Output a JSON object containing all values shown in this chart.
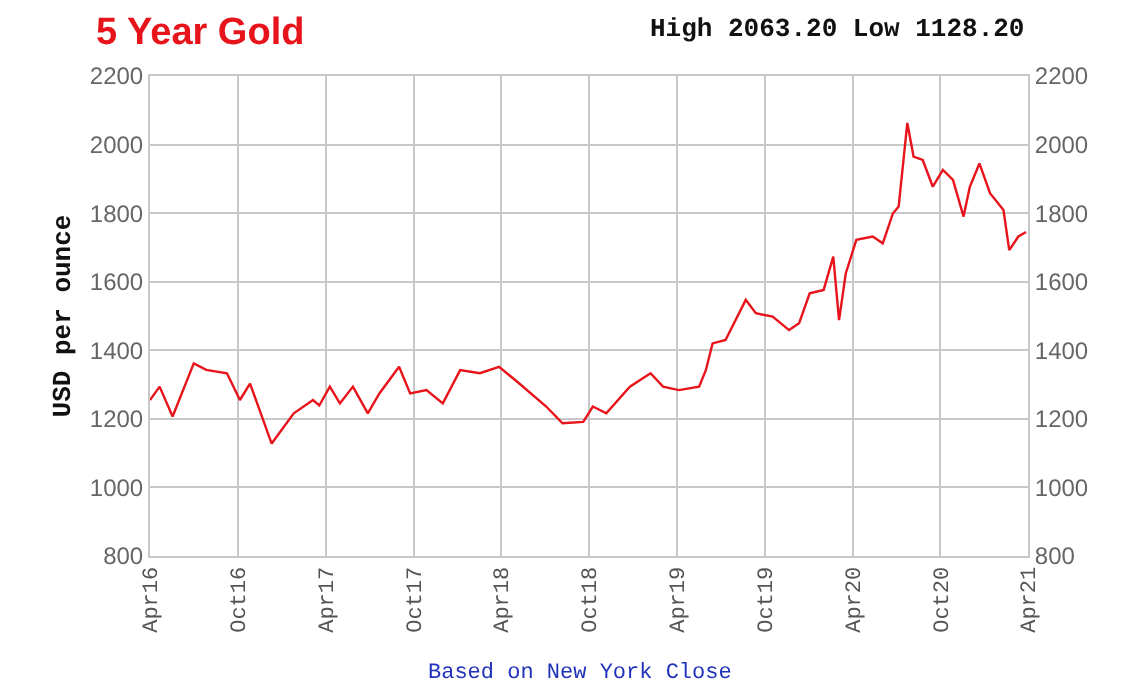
{
  "chart_data": {
    "type": "line",
    "title": "5 Year Gold",
    "subtitle": "High 2063.20 Low 1128.20",
    "ylabel": "USD per ounce",
    "annotations": [
      "Based on New York Close"
    ],
    "x": [
      "2016-04-01",
      "2016-04-21",
      "2016-05-18",
      "2016-07-01",
      "2016-07-27",
      "2016-09-08",
      "2016-10-05",
      "2016-10-26",
      "2016-12-10",
      "2017-01-25",
      "2017-03-06",
      "2017-03-19",
      "2017-04-10",
      "2017-05-01",
      "2017-05-28",
      "2017-06-28",
      "2017-07-22",
      "2017-09-01",
      "2017-09-24",
      "2017-10-28",
      "2017-12-01",
      "2018-01-06",
      "2018-02-16",
      "2018-03-28",
      "2018-05-09",
      "2018-07-04",
      "2018-08-07",
      "2018-09-19",
      "2018-10-09",
      "2018-11-06",
      "2018-12-25",
      "2019-02-06",
      "2019-03-04",
      "2019-04-06",
      "2019-05-18",
      "2019-06-01",
      "2019-06-15",
      "2019-07-12",
      "2019-08-23",
      "2019-09-13",
      "2019-10-18",
      "2019-11-21",
      "2019-12-12",
      "2020-01-03",
      "2020-02-01",
      "2020-02-21",
      "2020-03-04",
      "2020-03-18",
      "2020-04-09",
      "2020-05-13",
      "2020-06-03",
      "2020-06-24",
      "2020-07-06",
      "2020-07-24",
      "2020-08-06",
      "2020-08-25",
      "2020-09-15",
      "2020-10-06",
      "2020-10-27",
      "2020-11-18",
      "2020-12-01",
      "2020-12-21",
      "2021-01-12",
      "2021-02-09",
      "2021-02-21",
      "2021-03-12",
      "2021-03-28"
    ],
    "series": [
      {
        "color": "#e8141c",
        "values": [
          1255,
          1294,
          1207,
          1362,
          1343,
          1333,
          1255,
          1303,
          1128,
          1216,
          1255,
          1239,
          1294,
          1245,
          1294,
          1216,
          1274,
          1352,
          1274,
          1284,
          1245,
          1342,
          1333,
          1352,
          1303,
          1236,
          1187,
          1191,
          1236,
          1216,
          1294,
          1333,
          1294,
          1284,
          1294,
          1342,
          1420,
          1430,
          1547,
          1508,
          1498,
          1459,
          1479,
          1566,
          1576,
          1673,
          1488,
          1624,
          1722,
          1732,
          1712,
          1799,
          1819,
          2063,
          1965,
          1955,
          1877,
          1926,
          1897,
          1790,
          1877,
          1945,
          1858,
          1809,
          1692,
          1732,
          1745
        ]
      }
    ],
    "xlim": [
      "2016-04-01",
      "2021-04-01"
    ],
    "xticks": [
      {
        "value": "2016-04-01",
        "label": "Apr16"
      },
      {
        "value": "2016-10-01",
        "label": "Oct16"
      },
      {
        "value": "2017-04-01",
        "label": "Apr17"
      },
      {
        "value": "2017-10-01",
        "label": "Oct17"
      },
      {
        "value": "2018-04-01",
        "label": "Apr18"
      },
      {
        "value": "2018-10-01",
        "label": "Oct18"
      },
      {
        "value": "2019-04-01",
        "label": "Apr19"
      },
      {
        "value": "2019-10-01",
        "label": "Oct19"
      },
      {
        "value": "2020-04-01",
        "label": "Apr20"
      },
      {
        "value": "2020-10-01",
        "label": "Oct20"
      },
      {
        "value": "2021-04-01",
        "label": "Apr21"
      }
    ],
    "ylim": [
      800,
      2200
    ],
    "yticks": [
      800,
      1000,
      1200,
      1400,
      1600,
      1800,
      2000,
      2200
    ],
    "y2lim": [
      800,
      2200
    ],
    "y2ticks": [
      800,
      1000,
      1200,
      1400,
      1600,
      1800,
      2000,
      2200
    ],
    "grid": true,
    "marker": "none",
    "line_style": "solid"
  }
}
